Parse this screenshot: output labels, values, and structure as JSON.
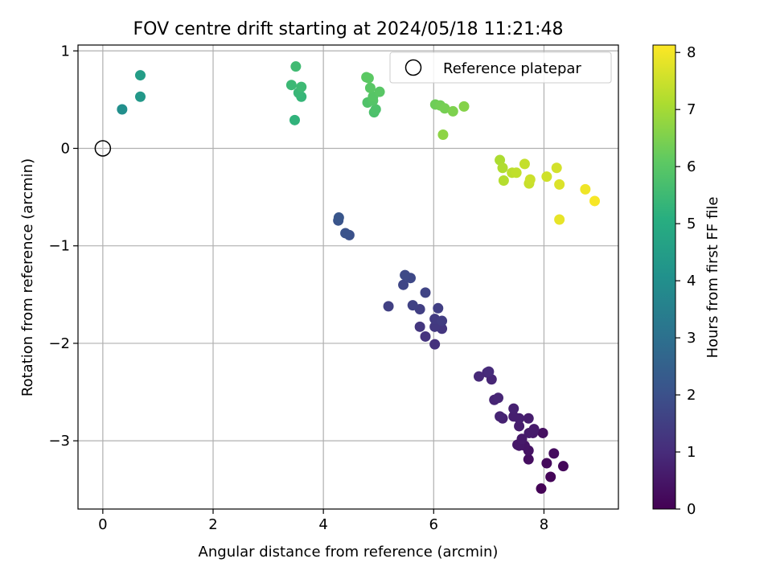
{
  "chart_data": {
    "type": "scatter",
    "title": "FOV centre drift starting at 2024/05/18 11:21:48",
    "xlabel": "Angular distance from reference (arcmin)",
    "ylabel": "Rotation from reference (arcmin)",
    "xlim": [
      -0.45,
      9.35
    ],
    "ylim": [
      -3.7,
      1.06
    ],
    "xticks": [
      0,
      2,
      4,
      6,
      8
    ],
    "xtick_labels": [
      "0",
      "2",
      "4",
      "6",
      "8"
    ],
    "yticks": [
      1,
      0,
      -1,
      -2,
      -3
    ],
    "ytick_labels": [
      "1",
      "0",
      "−1",
      "−2",
      "−3"
    ],
    "grid": true,
    "legend": {
      "placement": "top-right",
      "entries": [
        {
          "label": "Reference platepar",
          "marker": "open-circle",
          "color": "#000000"
        }
      ]
    },
    "reference": {
      "x": 0,
      "y": 0
    },
    "colorbar": {
      "label": "Hours from first FF file",
      "colormap": "viridis",
      "range": [
        0,
        8.13
      ],
      "ticks": [
        0,
        1,
        2,
        3,
        4,
        5,
        6,
        7,
        8
      ],
      "tick_labels": [
        "0",
        "1",
        "2",
        "3",
        "4",
        "5",
        "6",
        "7",
        "8"
      ]
    },
    "points": [
      {
        "x": 7.95,
        "y": -3.49,
        "c": 0.05
      },
      {
        "x": 8.12,
        "y": -3.37,
        "c": 0.1
      },
      {
        "x": 8.35,
        "y": -3.26,
        "c": 0.15
      },
      {
        "x": 8.05,
        "y": -3.23,
        "c": 0.2
      },
      {
        "x": 8.18,
        "y": -3.13,
        "c": 0.25
      },
      {
        "x": 7.72,
        "y": -3.19,
        "c": 0.3
      },
      {
        "x": 7.98,
        "y": -2.92,
        "c": 0.35
      },
      {
        "x": 7.72,
        "y": -3.1,
        "c": 0.4
      },
      {
        "x": 7.65,
        "y": -3.05,
        "c": 0.45
      },
      {
        "x": 7.55,
        "y": -3.05,
        "c": 0.5
      },
      {
        "x": 7.52,
        "y": -3.04,
        "c": 0.5
      },
      {
        "x": 7.6,
        "y": -2.98,
        "c": 0.55
      },
      {
        "x": 7.8,
        "y": -2.92,
        "c": 0.55
      },
      {
        "x": 7.73,
        "y": -2.92,
        "c": 0.6
      },
      {
        "x": 7.82,
        "y": -2.88,
        "c": 0.6
      },
      {
        "x": 7.55,
        "y": -2.85,
        "c": 0.65
      },
      {
        "x": 7.72,
        "y": -2.77,
        "c": 0.65
      },
      {
        "x": 7.55,
        "y": -2.77,
        "c": 0.7
      },
      {
        "x": 7.45,
        "y": -2.75,
        "c": 0.7
      },
      {
        "x": 7.45,
        "y": -2.67,
        "c": 0.75
      },
      {
        "x": 7.25,
        "y": -2.77,
        "c": 0.75
      },
      {
        "x": 7.2,
        "y": -2.75,
        "c": 0.8
      },
      {
        "x": 7.1,
        "y": -2.58,
        "c": 0.8
      },
      {
        "x": 7.17,
        "y": -2.56,
        "c": 0.85
      },
      {
        "x": 7.05,
        "y": -2.37,
        "c": 0.85
      },
      {
        "x": 6.97,
        "y": -2.3,
        "c": 0.9
      },
      {
        "x": 6.82,
        "y": -2.34,
        "c": 0.95
      },
      {
        "x": 7.0,
        "y": -2.29,
        "c": 1.0
      },
      {
        "x": 6.02,
        "y": -2.01,
        "c": 1.15
      },
      {
        "x": 5.85,
        "y": -1.93,
        "c": 1.2
      },
      {
        "x": 6.15,
        "y": -1.85,
        "c": 1.25
      },
      {
        "x": 5.75,
        "y": -1.83,
        "c": 1.3
      },
      {
        "x": 6.02,
        "y": -1.83,
        "c": 1.35
      },
      {
        "x": 6.02,
        "y": -1.75,
        "c": 1.4
      },
      {
        "x": 6.15,
        "y": -1.77,
        "c": 1.45
      },
      {
        "x": 5.75,
        "y": -1.65,
        "c": 1.5
      },
      {
        "x": 6.08,
        "y": -1.64,
        "c": 1.5
      },
      {
        "x": 5.18,
        "y": -1.62,
        "c": 1.55
      },
      {
        "x": 5.62,
        "y": -1.61,
        "c": 1.6
      },
      {
        "x": 5.85,
        "y": -1.48,
        "c": 1.65
      },
      {
        "x": 5.45,
        "y": -1.4,
        "c": 1.7
      },
      {
        "x": 5.58,
        "y": -1.33,
        "c": 1.75
      },
      {
        "x": 5.48,
        "y": -1.3,
        "c": 1.8
      },
      {
        "x": 4.47,
        "y": -0.89,
        "c": 2.0
      },
      {
        "x": 4.4,
        "y": -0.87,
        "c": 2.05
      },
      {
        "x": 4.27,
        "y": -0.74,
        "c": 2.1
      },
      {
        "x": 4.28,
        "y": -0.71,
        "c": 2.15
      },
      {
        "x": 0.35,
        "y": 0.4,
        "c": 4.0
      },
      {
        "x": 0.68,
        "y": 0.53,
        "c": 4.3
      },
      {
        "x": 0.68,
        "y": 0.75,
        "c": 4.5
      },
      {
        "x": 3.48,
        "y": 0.29,
        "c": 5.25
      },
      {
        "x": 3.6,
        "y": 0.53,
        "c": 5.35
      },
      {
        "x": 3.55,
        "y": 0.57,
        "c": 5.4
      },
      {
        "x": 3.42,
        "y": 0.65,
        "c": 5.45
      },
      {
        "x": 3.6,
        "y": 0.63,
        "c": 5.5
      },
      {
        "x": 3.5,
        "y": 0.84,
        "c": 5.55
      },
      {
        "x": 4.92,
        "y": 0.37,
        "c": 5.75
      },
      {
        "x": 4.95,
        "y": 0.4,
        "c": 5.8
      },
      {
        "x": 4.8,
        "y": 0.47,
        "c": 5.85
      },
      {
        "x": 4.9,
        "y": 0.49,
        "c": 5.9
      },
      {
        "x": 4.9,
        "y": 0.53,
        "c": 5.95
      },
      {
        "x": 5.02,
        "y": 0.58,
        "c": 6.0
      },
      {
        "x": 4.85,
        "y": 0.62,
        "c": 6.0
      },
      {
        "x": 4.78,
        "y": 0.73,
        "c": 6.05
      },
      {
        "x": 4.82,
        "y": 0.72,
        "c": 6.05
      },
      {
        "x": 6.03,
        "y": 0.45,
        "c": 6.3
      },
      {
        "x": 6.12,
        "y": 0.44,
        "c": 6.35
      },
      {
        "x": 6.2,
        "y": 0.41,
        "c": 6.4
      },
      {
        "x": 6.35,
        "y": 0.38,
        "c": 6.5
      },
      {
        "x": 6.55,
        "y": 0.43,
        "c": 6.6
      },
      {
        "x": 6.17,
        "y": 0.14,
        "c": 6.7
      },
      {
        "x": 7.2,
        "y": -0.12,
        "c": 7.1
      },
      {
        "x": 7.25,
        "y": -0.2,
        "c": 7.15
      },
      {
        "x": 7.27,
        "y": -0.33,
        "c": 7.2
      },
      {
        "x": 7.42,
        "y": -0.25,
        "c": 7.3
      },
      {
        "x": 7.5,
        "y": -0.25,
        "c": 7.35
      },
      {
        "x": 7.65,
        "y": -0.16,
        "c": 7.4
      },
      {
        "x": 7.73,
        "y": -0.36,
        "c": 7.45
      },
      {
        "x": 7.75,
        "y": -0.32,
        "c": 7.5
      },
      {
        "x": 8.05,
        "y": -0.29,
        "c": 7.55
      },
      {
        "x": 8.23,
        "y": -0.2,
        "c": 7.6
      },
      {
        "x": 8.28,
        "y": -0.37,
        "c": 7.7
      },
      {
        "x": 8.28,
        "y": -0.73,
        "c": 7.85
      },
      {
        "x": 8.75,
        "y": -0.42,
        "c": 7.95
      },
      {
        "x": 8.92,
        "y": -0.54,
        "c": 8.05
      }
    ]
  }
}
